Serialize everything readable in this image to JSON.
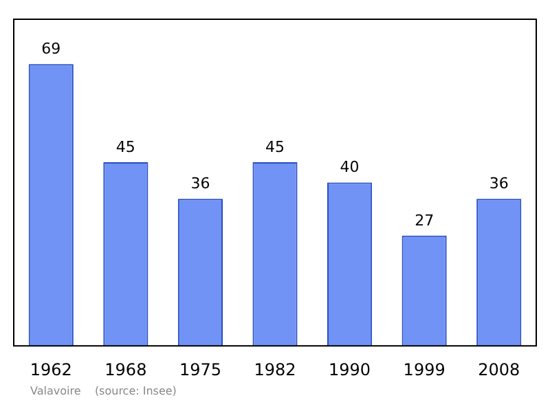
{
  "chart_data": {
    "type": "bar",
    "categories": [
      "1962",
      "1968",
      "1975",
      "1982",
      "1990",
      "1999",
      "2008"
    ],
    "values": [
      69,
      45,
      36,
      45,
      40,
      27,
      36
    ],
    "color": "#7093f5",
    "data_labels": true,
    "grid": false,
    "legend": false,
    "annotations": [
      "Valavoire    (source: Insee)"
    ]
  }
}
